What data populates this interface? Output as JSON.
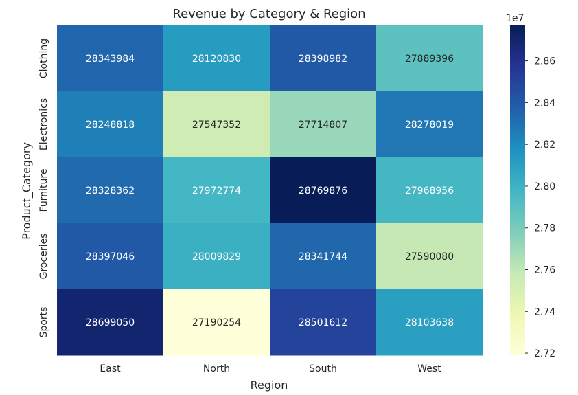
{
  "chart_data": {
    "type": "heatmap",
    "title": "Revenue by Category & Region",
    "xlabel": "Region",
    "ylabel": "Product_Category",
    "x_categories": [
      "East",
      "North",
      "South",
      "West"
    ],
    "y_categories": [
      "Clothing",
      "Electronics",
      "Furniture",
      "Groceries",
      "Sports"
    ],
    "values": [
      [
        28343984,
        28120830,
        28398982,
        27889396
      ],
      [
        28248818,
        27547352,
        27714807,
        28278019
      ],
      [
        28328362,
        27972774,
        28769876,
        27968956
      ],
      [
        28397046,
        28009829,
        28341744,
        27590080
      ],
      [
        28699050,
        27190254,
        28501612,
        28103638
      ]
    ],
    "colormap": "YlGnBu",
    "colorbar": {
      "label_multiplier": "1e7",
      "ticks": [
        2.72,
        2.74,
        2.76,
        2.78,
        2.8,
        2.82,
        2.84,
        2.86
      ],
      "tick_labels": [
        "2.72",
        "2.74",
        "2.76",
        "2.78",
        "2.80",
        "2.82",
        "2.84",
        "2.86"
      ],
      "range": [
        27190254,
        28769876
      ]
    },
    "grid": false
  }
}
